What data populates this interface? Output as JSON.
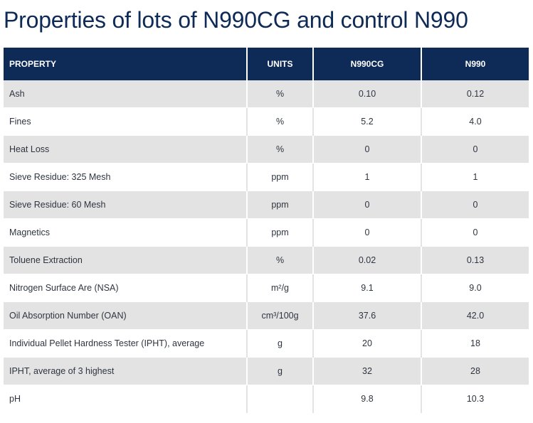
{
  "title": "Properties of lots of N990CG and control N990",
  "table": {
    "headers": [
      "PROPERTY",
      "UNITS",
      "N990CG",
      "N990"
    ],
    "rows": [
      [
        "Ash",
        "%",
        "0.10",
        "0.12"
      ],
      [
        "Fines",
        "%",
        "5.2",
        "4.0"
      ],
      [
        "Heat Loss",
        "%",
        "0",
        "0"
      ],
      [
        "Sieve Residue: 325 Mesh",
        "ppm",
        "1",
        "1"
      ],
      [
        "Sieve Residue: 60 Mesh",
        "ppm",
        "0",
        "0"
      ],
      [
        "Magnetics",
        "ppm",
        "0",
        "0"
      ],
      [
        "Toluene Extraction",
        "%",
        "0.02",
        "0.13"
      ],
      [
        "Nitrogen Surface Are (NSA)",
        "m²/g",
        "9.1",
        "9.0"
      ],
      [
        "Oil Absorption Number (OAN)",
        "cm³/100g",
        "37.6",
        "42.0"
      ],
      [
        "Individual Pellet Hardness Tester (IPHT), average",
        "g",
        "20",
        "18"
      ],
      [
        "IPHT, average of 3 highest",
        "g",
        "32",
        "28"
      ],
      [
        "pH",
        "",
        "9.8",
        "10.3"
      ]
    ]
  },
  "colors": {
    "header_bg": "#0e2a57",
    "title_text": "#0e2a57",
    "stripe": "#e3e3e3"
  }
}
